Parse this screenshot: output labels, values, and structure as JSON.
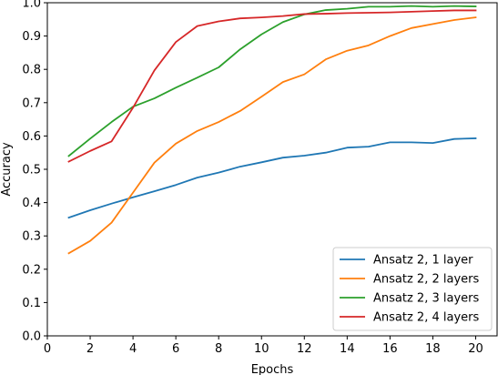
{
  "chart_data": {
    "type": "line",
    "xlabel": "Epochs",
    "ylabel": "Accuracy",
    "xlim": [
      0,
      21
    ],
    "ylim": [
      0.0,
      1.0
    ],
    "xticks": [
      0,
      2,
      4,
      6,
      8,
      10,
      12,
      14,
      16,
      18,
      20
    ],
    "yticks": [
      0.0,
      0.1,
      0.2,
      0.3,
      0.4,
      0.5,
      0.6,
      0.7,
      0.8,
      0.9,
      1.0
    ],
    "ytick_labels": [
      "0.0",
      "0.1",
      "0.2",
      "0.3",
      "0.4",
      "0.5",
      "0.6",
      "0.7",
      "0.8",
      "0.9",
      "1.0"
    ],
    "grid": false,
    "legend_position": "bottom-right",
    "x": [
      1,
      2,
      3,
      4,
      5,
      6,
      7,
      8,
      9,
      10,
      11,
      12,
      13,
      14,
      15,
      16,
      17,
      18,
      19,
      20
    ],
    "series": [
      {
        "name": "Ansatz 2, 1 layer",
        "color": "#1f77b4",
        "values": [
          0.355,
          0.377,
          0.397,
          0.416,
          0.434,
          0.453,
          0.475,
          0.49,
          0.508,
          0.521,
          0.535,
          0.541,
          0.55,
          0.565,
          0.568,
          0.581,
          0.581,
          0.579,
          0.591,
          0.593
        ]
      },
      {
        "name": "Ansatz 2, 2 layers",
        "color": "#ff7f0e",
        "values": [
          0.248,
          0.285,
          0.34,
          0.43,
          0.52,
          0.577,
          0.615,
          0.642,
          0.675,
          0.718,
          0.762,
          0.785,
          0.83,
          0.856,
          0.872,
          0.9,
          0.924,
          0.936,
          0.948,
          0.956
        ]
      },
      {
        "name": "Ansatz 2, 3 layers",
        "color": "#2ca02c",
        "values": [
          0.54,
          0.592,
          0.642,
          0.688,
          0.713,
          0.745,
          0.775,
          0.806,
          0.86,
          0.905,
          0.942,
          0.965,
          0.978,
          0.982,
          0.988,
          0.988,
          0.99,
          0.988,
          0.99,
          0.989
        ]
      },
      {
        "name": "Ansatz 2, 4 layers",
        "color": "#d62728",
        "values": [
          0.523,
          0.555,
          0.584,
          0.685,
          0.797,
          0.882,
          0.93,
          0.944,
          0.953,
          0.956,
          0.96,
          0.966,
          0.967,
          0.969,
          0.97,
          0.971,
          0.973,
          0.975,
          0.977,
          0.977
        ]
      }
    ]
  }
}
